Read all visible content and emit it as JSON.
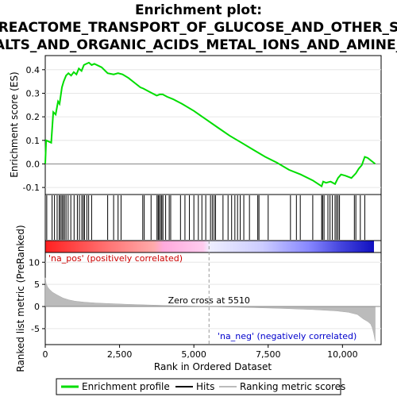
{
  "title_lines": [
    "Enrichment plot:",
    "REACTOME_TRANSPORT_OF_GLUCOSE_AND_OTHER_S",
    "ALTS_AND_ORGANIC_ACIDS_METAL_IONS_AND_AMINE_"
  ],
  "legend": {
    "items": [
      {
        "label": "Enrichment profile",
        "color": "#00dd00"
      },
      {
        "label": "Hits",
        "color": "#000000"
      },
      {
        "label": "Ranking metric scores",
        "color": "#bbbbbb"
      }
    ]
  },
  "chart_data": [
    {
      "type": "line",
      "name": "enrichment-profile",
      "ylabel": "Enrichment score (ES)",
      "ylim": [
        -0.13,
        0.46
      ],
      "xlim": [
        0,
        11300
      ],
      "yticks": [
        "0.4",
        "0.3",
        "0.2",
        "0.1",
        "0.0",
        "-0.1"
      ],
      "ytick_values": [
        0.4,
        0.3,
        0.2,
        0.1,
        0.0,
        -0.1
      ],
      "series": [
        {
          "color": "#00dd00",
          "x": [
            0,
            30,
            200,
            270,
            350,
            430,
            480,
            520,
            560,
            620,
            700,
            780,
            870,
            960,
            1050,
            1130,
            1220,
            1300,
            1380,
            1470,
            1560,
            1650,
            1900,
            2100,
            2300,
            2450,
            2600,
            2800,
            3000,
            3200,
            3300,
            3450,
            3600,
            3750,
            3850,
            3950,
            4100,
            4300,
            4600,
            5000,
            5400,
            5800,
            6200,
            6600,
            7000,
            7400,
            7800,
            8200,
            8600,
            9000,
            9300,
            9350,
            9450,
            9600,
            9750,
            9850,
            9950,
            10100,
            10300,
            10450,
            10550,
            10650,
            10750,
            10850,
            11100
          ],
          "y": [
            0.0,
            0.1,
            0.09,
            0.22,
            0.21,
            0.265,
            0.255,
            0.29,
            0.325,
            0.35,
            0.375,
            0.385,
            0.375,
            0.39,
            0.38,
            0.405,
            0.395,
            0.42,
            0.425,
            0.43,
            0.42,
            0.425,
            0.41,
            0.385,
            0.38,
            0.385,
            0.38,
            0.365,
            0.345,
            0.325,
            0.32,
            0.31,
            0.3,
            0.29,
            0.295,
            0.295,
            0.285,
            0.275,
            0.255,
            0.225,
            0.19,
            0.155,
            0.12,
            0.09,
            0.06,
            0.03,
            0.005,
            -0.025,
            -0.045,
            -0.07,
            -0.095,
            -0.075,
            -0.08,
            -0.075,
            -0.085,
            -0.06,
            -0.045,
            -0.05,
            -0.06,
            -0.04,
            -0.02,
            -0.005,
            0.03,
            0.025,
            0.0
          ]
        }
      ]
    },
    {
      "type": "table",
      "name": "hits",
      "xlim": [
        0,
        11300
      ],
      "positions": [
        50,
        230,
        310,
        400,
        470,
        510,
        560,
        600,
        650,
        700,
        770,
        860,
        970,
        1080,
        1150,
        1230,
        1280,
        1320,
        1400,
        1460,
        1560,
        2100,
        2300,
        2450,
        2550,
        3280,
        3330,
        3560,
        3760,
        3800,
        3830,
        3880,
        3920,
        3960,
        4050,
        4170,
        4220,
        4550,
        4700,
        4850,
        5000,
        5150,
        5270,
        5400,
        5560,
        5620,
        5680,
        5730,
        5980,
        6150,
        6270,
        6380,
        6470,
        6560,
        6680,
        6870,
        7150,
        7190,
        7500,
        8250,
        8450,
        8580,
        9000,
        9300,
        9330,
        9380,
        9510,
        9580,
        9660,
        9750,
        9800,
        9850,
        9900,
        10400,
        10450,
        10600,
        10750
      ]
    },
    {
      "type": "area",
      "name": "ranking-metric",
      "ylabel": "Ranked list metric (PreRanked)",
      "xlabel": "Rank in Ordered Dataset",
      "ylim": [
        -8.6,
        12.2
      ],
      "xlim": [
        0,
        11300
      ],
      "yticks": [
        "10",
        "5",
        "0",
        "-5"
      ],
      "ytick_values": [
        10,
        5,
        0,
        -5
      ],
      "xticks": [
        "0",
        "2,500",
        "5,000",
        "7,500",
        "10,000"
      ],
      "xtick_values": [
        0,
        2500,
        5000,
        7500,
        10000
      ],
      "x": [
        0,
        30,
        80,
        150,
        250,
        400,
        600,
        800,
        1000,
        1300,
        1700,
        2200,
        2800,
        3500,
        4200,
        5000,
        5510,
        6000,
        7000,
        8000,
        9000,
        9800,
        10200,
        10500,
        10700,
        10850,
        10950,
        11000,
        11050,
        11100
      ],
      "values": [
        6.5,
        5.2,
        4.4,
        3.8,
        3.2,
        2.6,
        1.9,
        1.5,
        1.2,
        1.0,
        0.8,
        0.65,
        0.5,
        0.35,
        0.2,
        0.08,
        0.0,
        -0.08,
        -0.25,
        -0.45,
        -0.7,
        -1.0,
        -1.3,
        -1.8,
        -2.8,
        -3.4,
        -4.0,
        -4.8,
        -6.0,
        -7.8
      ],
      "zero_cross_label": "Zero cross at 5510",
      "zero_cross": 5510,
      "pos_label": "'na_pos' (positively correlated)",
      "neg_label": "'na_neg' (negatively correlated)"
    }
  ]
}
